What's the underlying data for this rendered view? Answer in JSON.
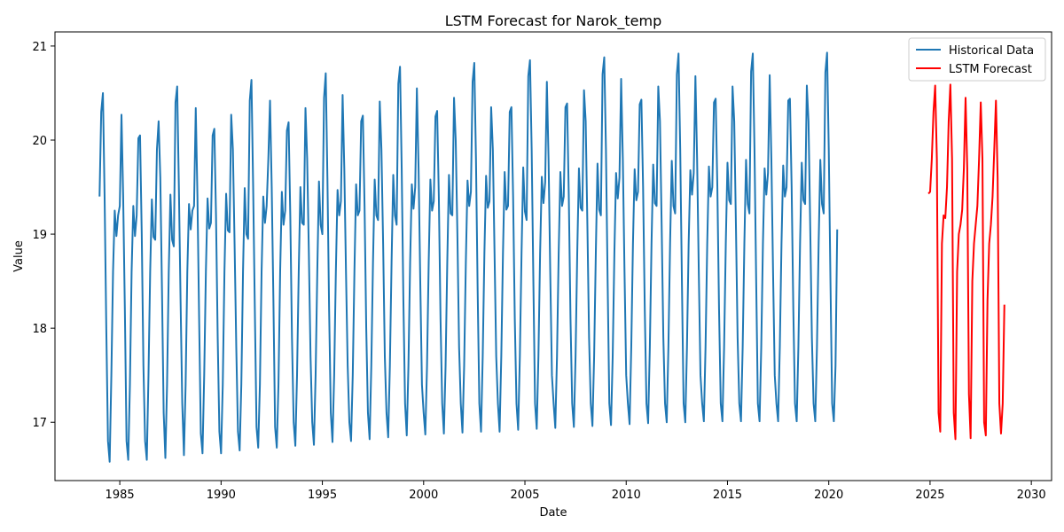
{
  "chart_data": {
    "type": "line",
    "title": "LSTM Forecast for Narok_temp",
    "xlabel": "Date",
    "ylabel": "Value",
    "xlim": [
      1981.8,
      2031.0
    ],
    "ylim": [
      16.38,
      21.15
    ],
    "x_ticks": [
      1985,
      1990,
      1995,
      2000,
      2005,
      2010,
      2015,
      2020,
      2025,
      2030
    ],
    "x_tick_labels": [
      "1985",
      "1990",
      "1995",
      "2000",
      "2005",
      "2010",
      "2015",
      "2020",
      "2025",
      "2030"
    ],
    "y_ticks": [
      17,
      18,
      19,
      20,
      21
    ],
    "y_tick_labels": [
      "17",
      "18",
      "19",
      "20",
      "21"
    ],
    "grid": false,
    "legend_position": "top-right",
    "series": [
      {
        "name": "Historical Data",
        "color": "#1f77b4",
        "x_start": 1984.0,
        "x_step_months": 1,
        "values": [
          19.4,
          20.3,
          20.5,
          19.4,
          18.0,
          16.8,
          16.58,
          17.5,
          18.6,
          19.25,
          18.98,
          19.2,
          19.3,
          20.27,
          19.4,
          18.2,
          16.8,
          16.6,
          17.4,
          18.6,
          19.3,
          18.98,
          19.2,
          20.02,
          20.05,
          19.0,
          17.6,
          16.8,
          16.6,
          17.5,
          18.6,
          19.37,
          18.97,
          18.94,
          19.9,
          20.2,
          19.6,
          18.4,
          17.1,
          16.62,
          17.4,
          18.6,
          19.42,
          18.94,
          18.87,
          20.4,
          20.57,
          19.5,
          18.3,
          17.2,
          16.65,
          17.4,
          18.6,
          19.32,
          19.05,
          19.25,
          19.3,
          20.34,
          19.4,
          18.1,
          16.88,
          16.67,
          17.5,
          18.6,
          19.38,
          19.06,
          19.12,
          20.05,
          20.12,
          19.2,
          17.9,
          16.9,
          16.67,
          17.4,
          18.6,
          19.43,
          19.04,
          19.02,
          20.27,
          19.9,
          18.9,
          17.8,
          16.9,
          16.7,
          17.4,
          18.6,
          19.49,
          19.0,
          18.95,
          20.42,
          20.64,
          19.5,
          18.2,
          16.95,
          16.73,
          17.4,
          18.6,
          19.4,
          19.12,
          19.3,
          19.8,
          20.42,
          19.5,
          18.3,
          16.95,
          16.73,
          17.4,
          18.6,
          19.45,
          19.1,
          19.25,
          20.1,
          20.19,
          19.2,
          17.9,
          17.0,
          16.75,
          17.5,
          18.6,
          19.5,
          19.12,
          19.1,
          20.34,
          19.8,
          18.8,
          17.7,
          17.0,
          16.76,
          17.5,
          18.6,
          19.56,
          19.1,
          19.0,
          20.45,
          20.71,
          19.6,
          18.2,
          17.1,
          16.79,
          17.5,
          18.6,
          19.47,
          19.2,
          19.35,
          20.48,
          19.7,
          18.6,
          17.6,
          17.0,
          16.8,
          17.5,
          18.6,
          19.53,
          19.2,
          19.25,
          20.2,
          20.26,
          19.3,
          18.0,
          17.1,
          16.82,
          17.6,
          18.7,
          19.58,
          19.2,
          19.15,
          20.41,
          19.9,
          18.9,
          17.7,
          17.1,
          16.84,
          17.6,
          18.7,
          19.63,
          19.2,
          19.1,
          20.6,
          20.78,
          19.7,
          18.3,
          17.2,
          16.86,
          17.6,
          18.7,
          19.53,
          19.27,
          19.5,
          20.55,
          19.7,
          18.5,
          17.4,
          17.1,
          16.87,
          17.6,
          18.7,
          19.58,
          19.25,
          19.35,
          20.25,
          20.31,
          19.4,
          18.1,
          17.2,
          16.88,
          17.6,
          18.7,
          19.63,
          19.22,
          19.2,
          20.45,
          20.0,
          19.0,
          17.8,
          17.2,
          16.89,
          17.6,
          18.7,
          19.57,
          19.3,
          19.45,
          20.62,
          20.82,
          19.8,
          18.4,
          17.2,
          16.9,
          17.7,
          18.8,
          19.62,
          19.28,
          19.35,
          20.35,
          19.9,
          18.8,
          17.7,
          17.2,
          16.9,
          17.7,
          18.8,
          19.66,
          19.26,
          19.3,
          20.3,
          20.35,
          19.4,
          18.1,
          17.2,
          16.92,
          17.7,
          18.8,
          19.71,
          19.24,
          19.15,
          20.68,
          20.85,
          19.9,
          18.5,
          17.2,
          16.93,
          17.7,
          18.8,
          19.61,
          19.33,
          19.55,
          20.62,
          19.8,
          18.6,
          17.5,
          17.2,
          16.94,
          17.7,
          18.8,
          19.66,
          19.3,
          19.4,
          20.35,
          20.39,
          19.4,
          18.1,
          17.2,
          16.95,
          17.7,
          18.8,
          19.7,
          19.28,
          19.25,
          20.53,
          20.2,
          19.1,
          17.9,
          17.2,
          16.96,
          17.7,
          18.8,
          19.75,
          19.26,
          19.2,
          20.7,
          20.88,
          19.9,
          18.5,
          17.2,
          16.97,
          17.7,
          18.8,
          19.65,
          19.38,
          19.6,
          20.65,
          19.8,
          18.6,
          17.5,
          17.2,
          16.98,
          17.8,
          18.9,
          19.69,
          19.36,
          19.45,
          20.38,
          20.43,
          19.5,
          18.2,
          17.2,
          16.99,
          17.8,
          18.9,
          19.74,
          19.33,
          19.3,
          20.57,
          20.2,
          19.1,
          17.9,
          17.2,
          17.0,
          17.8,
          18.9,
          19.78,
          19.3,
          19.22,
          20.7,
          20.92,
          19.9,
          18.5,
          17.2,
          17.0,
          17.8,
          18.9,
          19.68,
          19.42,
          19.65,
          20.68,
          19.8,
          18.6,
          17.5,
          17.2,
          17.01,
          17.8,
          18.9,
          19.72,
          19.4,
          19.5,
          20.4,
          20.44,
          19.5,
          18.2,
          17.2,
          17.01,
          17.8,
          18.9,
          19.76,
          19.36,
          19.32,
          20.57,
          20.2,
          19.1,
          17.9,
          17.2,
          17.01,
          17.8,
          18.9,
          19.79,
          19.32,
          19.22,
          20.73,
          20.92,
          19.9,
          18.5,
          17.2,
          17.01,
          17.8,
          18.9,
          19.7,
          19.42,
          19.65,
          20.69,
          19.8,
          18.6,
          17.5,
          17.2,
          17.01,
          17.8,
          18.9,
          19.73,
          19.4,
          19.5,
          20.42,
          20.44,
          19.5,
          18.2,
          17.2,
          17.01,
          17.8,
          18.9,
          19.76,
          19.36,
          19.32,
          20.58,
          20.2,
          19.1,
          17.9,
          17.2,
          17.01,
          17.8,
          18.9,
          19.79,
          19.32,
          19.22,
          20.72,
          20.93,
          19.9,
          18.5,
          17.2,
          17.01,
          17.6,
          19.05
        ]
      },
      {
        "name": "LSTM Forecast",
        "color": "#ff0000",
        "x_start": 2024.92,
        "x_step_months": 1,
        "values": [
          19.43,
          19.45,
          19.8,
          20.3,
          20.58,
          19.8,
          17.1,
          16.9,
          18.9,
          19.2,
          19.17,
          19.5,
          20.2,
          20.59,
          19.8,
          17.1,
          16.82,
          18.6,
          19.0,
          19.1,
          19.26,
          19.7,
          20.45,
          19.7,
          17.3,
          16.83,
          18.5,
          18.9,
          19.1,
          19.3,
          19.8,
          20.4,
          19.8,
          17.0,
          16.86,
          18.3,
          18.9,
          19.1,
          19.4,
          19.9,
          20.42,
          19.6,
          17.2,
          16.88,
          17.2,
          18.25
        ]
      }
    ]
  }
}
